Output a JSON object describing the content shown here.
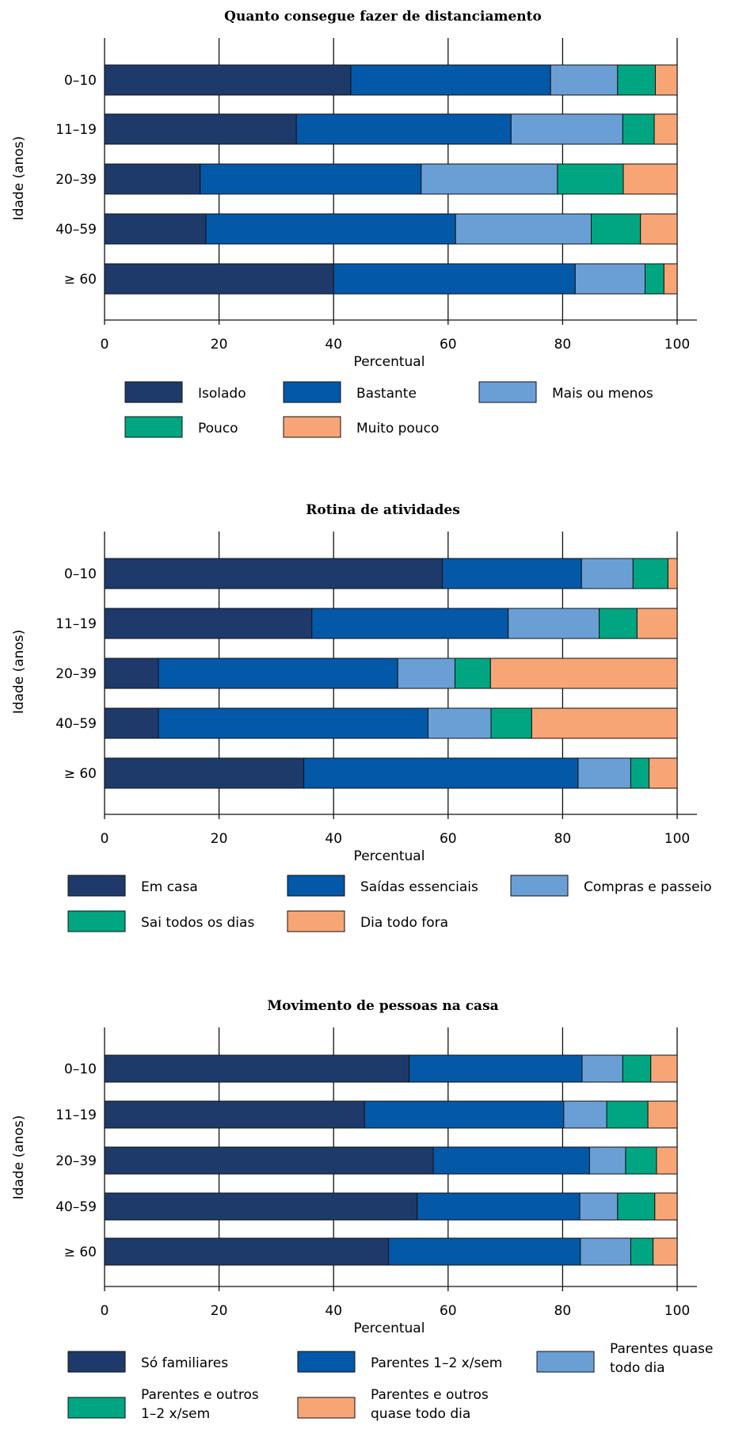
{
  "chart_data": [
    {
      "type": "bar",
      "orientation": "horizontal",
      "stacked": true,
      "title": "Quanto consegue fazer de distanciamento",
      "xlabel": "Percentual",
      "ylabel": "Idade (anos)",
      "xlim": [
        0,
        100
      ],
      "xticks": [
        "0",
        "20",
        "40",
        "60",
        "80",
        "100"
      ],
      "categories": [
        "0–10",
        "11–19",
        "20–39",
        "40–59",
        "≥ 60"
      ],
      "legend_position": "bottom",
      "series": [
        {
          "name": "Isolado",
          "color": "#1e3a6b",
          "values": [
            43,
            33.5,
            16.7,
            17.7,
            40
          ]
        },
        {
          "name": "Bastante",
          "color": "#0458a8",
          "values": [
            34.9,
            37.5,
            38.6,
            43.6,
            42.2
          ]
        },
        {
          "name": "Mais ou menos",
          "color": "#6a9fd6",
          "values": [
            11.7,
            19.5,
            23.8,
            23.7,
            12.2
          ]
        },
        {
          "name": "Pouco",
          "color": "#00a682",
          "values": [
            6.6,
            5.5,
            11.5,
            8.6,
            3.3
          ]
        },
        {
          "name": "Muito pouco",
          "color": "#f8a576",
          "values": [
            3.8,
            4,
            9.4,
            6.4,
            2.3
          ]
        }
      ]
    },
    {
      "type": "bar",
      "orientation": "horizontal",
      "stacked": true,
      "title": "Rotina de atividades",
      "xlabel": "Percentual",
      "ylabel": "Idade (anos)",
      "xlim": [
        0,
        100
      ],
      "xticks": [
        "0",
        "20",
        "40",
        "60",
        "80",
        "100"
      ],
      "categories": [
        "0–10",
        "11–19",
        "20–39",
        "40–59",
        "≥ 60"
      ],
      "legend_position": "bottom",
      "series": [
        {
          "name": "Em casa",
          "color": "#1e3a6b",
          "values": [
            59,
            36.2,
            9.4,
            9.4,
            34.8
          ]
        },
        {
          "name": "Saídas essenciais",
          "color": "#0458a8",
          "values": [
            24.3,
            34.3,
            41.8,
            47.1,
            47.9
          ]
        },
        {
          "name": "Compras e passeio",
          "color": "#6a9fd6",
          "values": [
            9,
            15.9,
            10,
            11,
            9.2
          ]
        },
        {
          "name": "Sai todos os dias",
          "color": "#00a682",
          "values": [
            6.1,
            6.6,
            6.2,
            7.1,
            3.2
          ]
        },
        {
          "name": "Dia todo fora",
          "color": "#f8a576",
          "values": [
            1.6,
            7,
            32.6,
            25.4,
            4.9
          ]
        }
      ]
    },
    {
      "type": "bar",
      "orientation": "horizontal",
      "stacked": true,
      "title": "Movimento de pessoas na casa",
      "xlabel": "Percentual",
      "ylabel": "Idade (anos)",
      "xlim": [
        0,
        100
      ],
      "xticks": [
        "0",
        "20",
        "40",
        "60",
        "80",
        "100"
      ],
      "categories": [
        "0–10",
        "11–19",
        "20–39",
        "40–59",
        "≥ 60"
      ],
      "legend_position": "bottom",
      "series": [
        {
          "name": "Só familiares",
          "color": "#1e3a6b",
          "values": [
            53.2,
            45.4,
            57.4,
            54.6,
            49.6
          ]
        },
        {
          "name": "Parentes 1–2 x/sem",
          "color": "#0458a8",
          "values": [
            30.2,
            34.8,
            27.3,
            28.4,
            33.5
          ]
        },
        {
          "name": "Parentes quase todo dia",
          "color": "#6a9fd6",
          "values": [
            7.1,
            7.5,
            6.3,
            6.6,
            8.8
          ]
        },
        {
          "name": "Parentes e outros 1–2 x/sem",
          "color": "#00a682",
          "values": [
            4.9,
            7.2,
            5.4,
            6.5,
            3.9
          ]
        },
        {
          "name": "Parentes e outros quase todo dia",
          "color": "#f8a576",
          "values": [
            4.6,
            5.1,
            3.6,
            3.9,
            4.2
          ]
        }
      ]
    }
  ]
}
